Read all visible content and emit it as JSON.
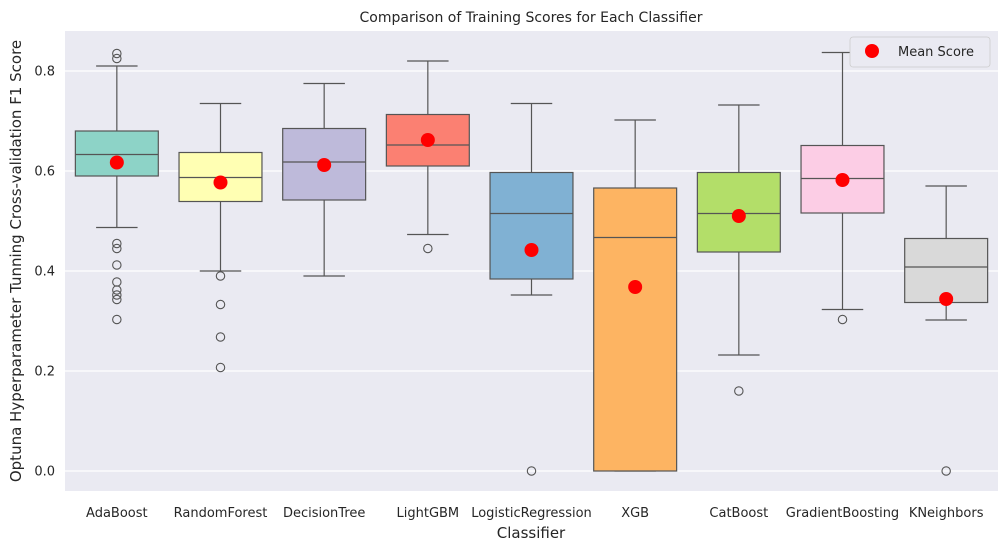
{
  "chart_data": {
    "type": "box",
    "title": "Comparison of Training Scores for Each Classifier",
    "xlabel": "Classifier",
    "ylabel": "Optuna Hyperparameter Tunning Cross-validation F1 Score",
    "ylim": [
      -0.04,
      0.88
    ],
    "yticks": [
      0.0,
      0.2,
      0.4,
      0.6,
      0.8
    ],
    "ytick_labels": [
      "0.0",
      "0.2",
      "0.4",
      "0.6",
      "0.8"
    ],
    "grid": true,
    "legend": {
      "placement": "top-right",
      "label": "Mean Score",
      "marker_color": "#ff0000"
    },
    "categories": [
      "AdaBoost",
      "RandomForest",
      "DecisionTree",
      "LightGBM",
      "LogisticRegression",
      "XGB",
      "CatBoost",
      "GradientBoosting",
      "KNeighbors"
    ],
    "boxes": [
      {
        "name": "AdaBoost",
        "color": "#8dd3c7",
        "whisker_low": 0.487,
        "q1": 0.59,
        "median": 0.633,
        "q3": 0.68,
        "whisker_high": 0.81,
        "mean": 0.617,
        "outliers": [
          0.835,
          0.825,
          0.455,
          0.445,
          0.412,
          0.378,
          0.362,
          0.352,
          0.343,
          0.303
        ]
      },
      {
        "name": "RandomForest",
        "color": "#ffffb3",
        "whisker_low": 0.4,
        "q1": 0.539,
        "median": 0.587,
        "q3": 0.637,
        "whisker_high": 0.735,
        "mean": 0.577,
        "outliers": [
          0.39,
          0.333,
          0.268,
          0.207
        ]
      },
      {
        "name": "DecisionTree",
        "color": "#bebada",
        "whisker_low": 0.39,
        "q1": 0.542,
        "median": 0.618,
        "q3": 0.685,
        "whisker_high": 0.775,
        "mean": 0.612,
        "outliers": []
      },
      {
        "name": "LightGBM",
        "color": "#fb8072",
        "whisker_low": 0.473,
        "q1": 0.61,
        "median": 0.652,
        "q3": 0.713,
        "whisker_high": 0.82,
        "mean": 0.662,
        "outliers": [
          0.445
        ]
      },
      {
        "name": "LogisticRegression",
        "color": "#80b1d3",
        "whisker_low": 0.352,
        "q1": 0.384,
        "median": 0.515,
        "q3": 0.597,
        "whisker_high": 0.735,
        "mean": 0.442,
        "outliers": [
          0.0
        ]
      },
      {
        "name": "XGB",
        "color": "#fdb462",
        "whisker_low": 0.0,
        "q1": 0.0,
        "median": 0.467,
        "q3": 0.566,
        "whisker_high": 0.702,
        "mean": 0.368,
        "outliers": []
      },
      {
        "name": "CatBoost",
        "color": "#b3de69",
        "whisker_low": 0.232,
        "q1": 0.438,
        "median": 0.515,
        "q3": 0.597,
        "whisker_high": 0.732,
        "mean": 0.51,
        "outliers": [
          0.16
        ]
      },
      {
        "name": "GradientBoosting",
        "color": "#fccde5",
        "whisker_low": 0.323,
        "q1": 0.516,
        "median": 0.585,
        "q3": 0.651,
        "whisker_high": 0.837,
        "mean": 0.582,
        "outliers": [
          0.303
        ]
      },
      {
        "name": "KNeighbors",
        "color": "#d9d9d9",
        "whisker_low": 0.302,
        "q1": 0.337,
        "median": 0.408,
        "q3": 0.465,
        "whisker_high": 0.57,
        "mean": 0.344,
        "outliers": [
          0.0
        ]
      }
    ]
  }
}
